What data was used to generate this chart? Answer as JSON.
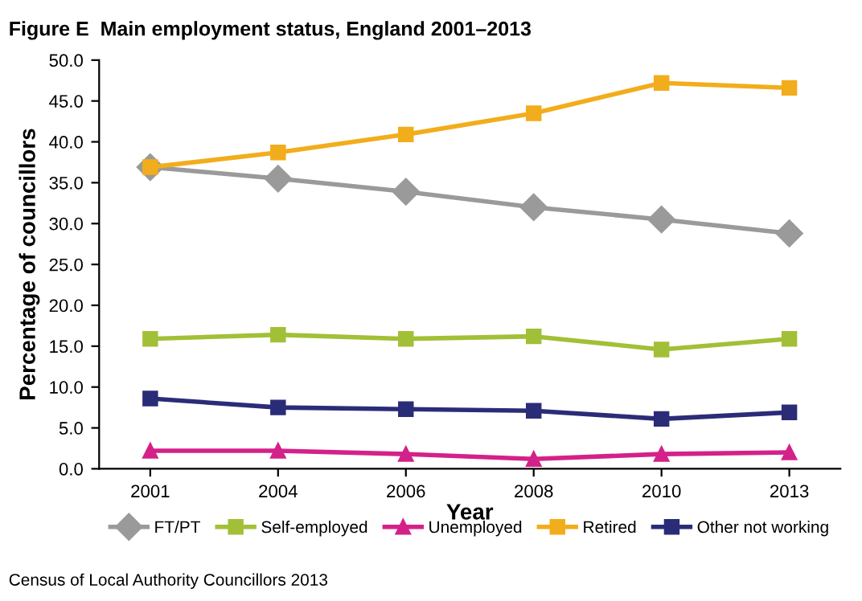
{
  "chart_data": {
    "type": "line",
    "title": "Figure E  Main employment status, England 2001–2013",
    "xlabel": "Year",
    "ylabel": "Percentage of councillors",
    "categories": [
      "2001",
      "2004",
      "2006",
      "2008",
      "2010",
      "2013"
    ],
    "series": [
      {
        "name": "FT/PT",
        "color": "#9a9a9a",
        "marker": "diamond",
        "values": [
          36.9,
          35.5,
          33.9,
          32.0,
          30.5,
          28.8
        ]
      },
      {
        "name": "Self-employed",
        "color": "#a2c037",
        "marker": "square",
        "values": [
          15.9,
          16.4,
          15.9,
          16.2,
          14.6,
          15.9
        ]
      },
      {
        "name": "Unemployed",
        "color": "#d4218a",
        "marker": "triangle",
        "values": [
          2.2,
          2.2,
          1.8,
          1.2,
          1.8,
          2.0
        ]
      },
      {
        "name": "Retired",
        "color": "#f2ad1c",
        "marker": "square",
        "values": [
          36.9,
          38.7,
          40.9,
          43.5,
          47.2,
          46.6
        ]
      },
      {
        "name": "Other not working",
        "color": "#2b2c78",
        "marker": "square",
        "values": [
          8.6,
          7.5,
          7.3,
          7.1,
          6.1,
          6.9
        ]
      }
    ],
    "ylim": [
      0,
      50
    ],
    "yticks": [
      {
        "value": 0,
        "label": "0.0"
      },
      {
        "value": 5,
        "label": "5.0"
      },
      {
        "value": 10,
        "label": "10.0"
      },
      {
        "value": 15,
        "label": "15.0"
      },
      {
        "value": 20,
        "label": "20.0"
      },
      {
        "value": 25,
        "label": "25.0"
      },
      {
        "value": 30,
        "label": "30.0"
      },
      {
        "value": 35,
        "label": "35.0"
      },
      {
        "value": 40,
        "label": "40.0"
      },
      {
        "value": 45,
        "label": "45.0"
      },
      {
        "value": 50,
        "label": "50.0"
      }
    ],
    "grid": false,
    "legend": "bottom",
    "line_style": "solid",
    "annotations": [
      "Census of Local Authority Councillors 2013"
    ]
  }
}
